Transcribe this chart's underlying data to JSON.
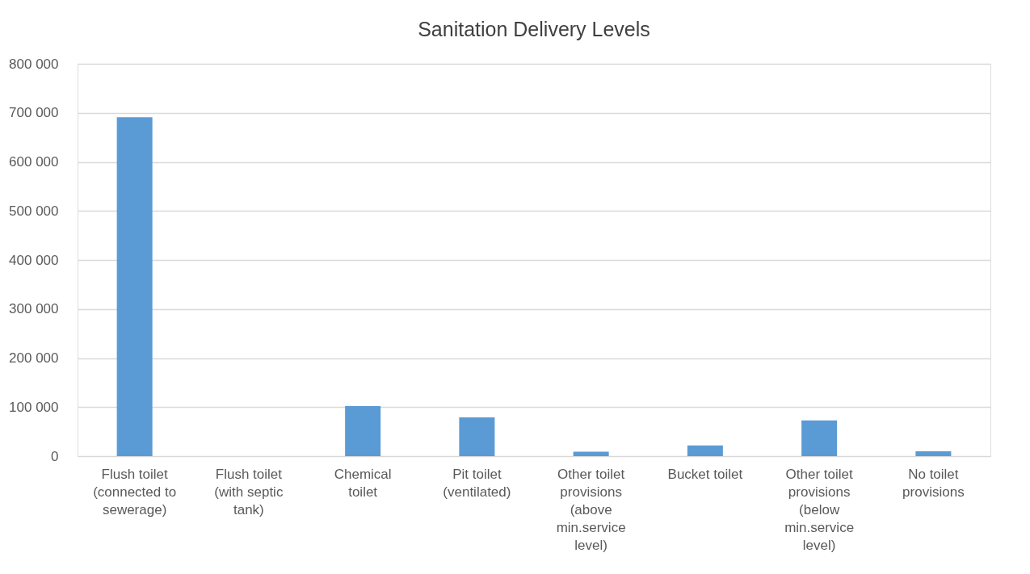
{
  "chart_data": {
    "type": "bar",
    "title": "Sanitation Delivery Levels",
    "categories": [
      "Flush toilet (connected to sewerage)",
      "Flush toilet (with septic tank)",
      "Chemical toilet",
      "Pit toilet (ventilated)",
      "Other toilet provisions (above min.service level)",
      "Bucket toilet",
      "Other toilet provisions (below min.service level)",
      "No toilet provisions"
    ],
    "values": [
      691000,
      0,
      102000,
      79000,
      9000,
      22000,
      73000,
      10000
    ],
    "color": "#5b9bd5",
    "ylim": [
      0,
      800000
    ],
    "yticks": [
      {
        "value": 0,
        "label": "0"
      },
      {
        "value": 100000,
        "label": "100 000"
      },
      {
        "value": 200000,
        "label": "200 000"
      },
      {
        "value": 300000,
        "label": "300 000"
      },
      {
        "value": 400000,
        "label": "400 000"
      },
      {
        "value": 500000,
        "label": "500 000"
      },
      {
        "value": 600000,
        "label": "600 000"
      },
      {
        "value": 700000,
        "label": "700 000"
      },
      {
        "value": 800000,
        "label": "800 000"
      }
    ],
    "grid": "y"
  }
}
